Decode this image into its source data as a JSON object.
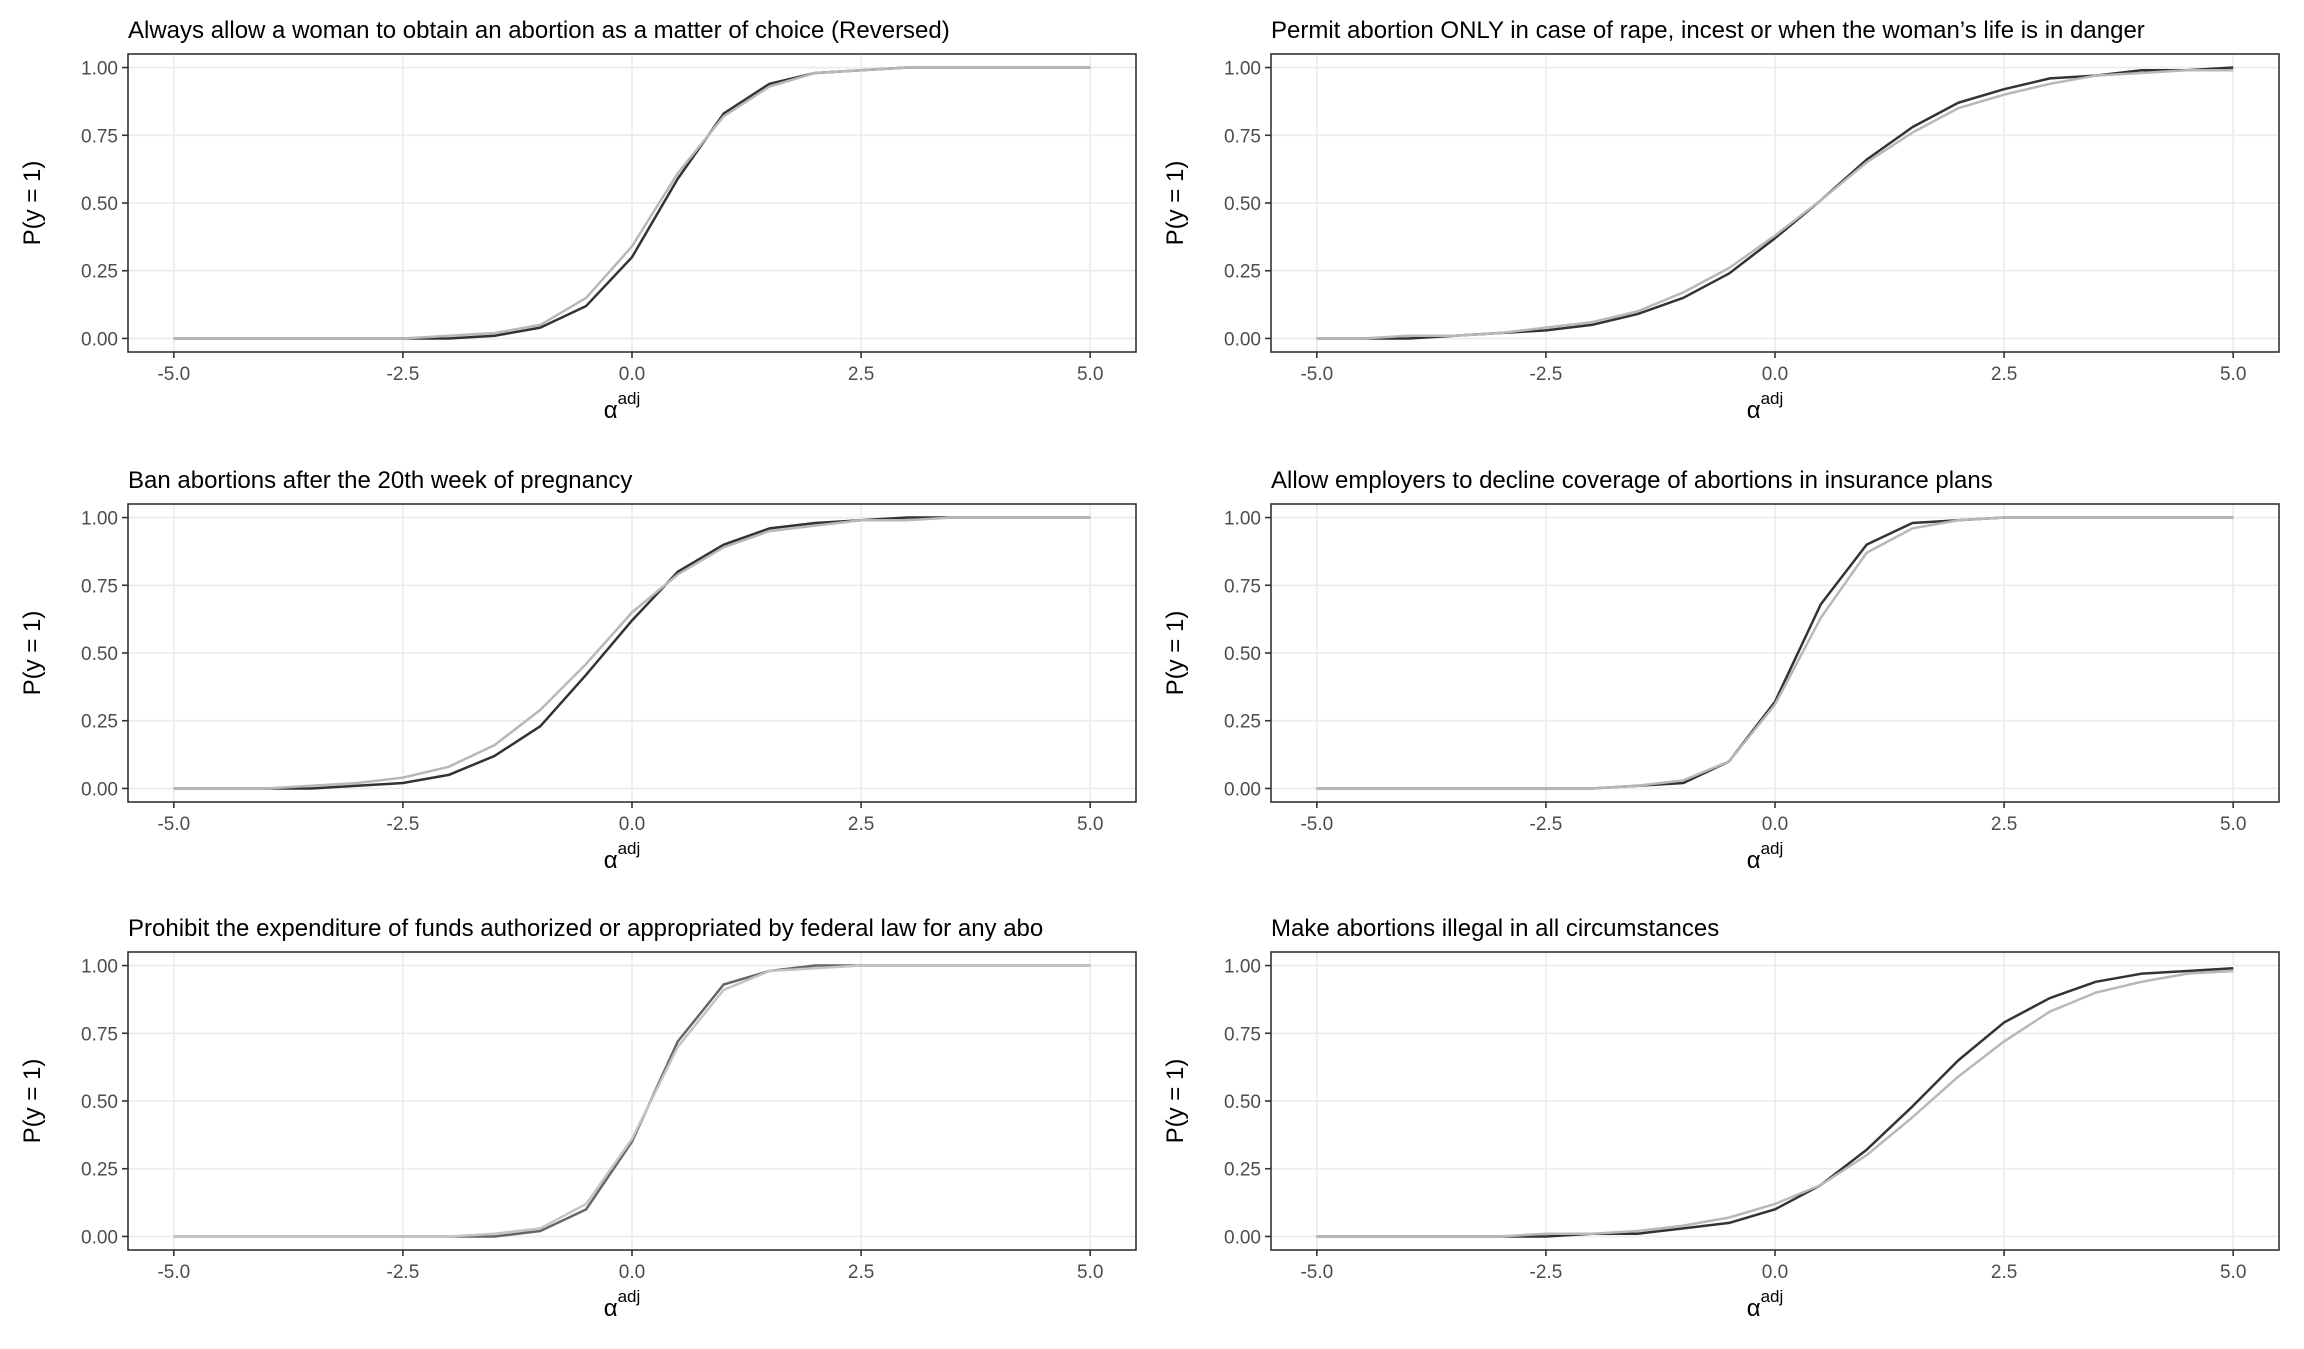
{
  "chart_data": [
    {
      "type": "line",
      "title": "Always allow a woman to obtain an abortion as a matter of choice (Reversed)",
      "x_label": "α",
      "x_label_superscript": "adj",
      "y_label": "P(y = 1)",
      "x": [
        -5,
        -4.5,
        -4,
        -3.5,
        -3,
        -2.5,
        -2,
        -1.5,
        -1,
        -0.5,
        0,
        0.5,
        1,
        1.5,
        2,
        2.5,
        3,
        3.5,
        4,
        4.5,
        5
      ],
      "series": [
        {
          "color": "#333333",
          "values": [
            0,
            0,
            0,
            0,
            0,
            0,
            0,
            0.01,
            0.04,
            0.12,
            0.3,
            0.59,
            0.83,
            0.94,
            0.98,
            0.99,
            1,
            1,
            1,
            1,
            1
          ]
        },
        {
          "color": "#b8b8b8",
          "values": [
            0,
            0,
            0,
            0,
            0,
            0,
            0.01,
            0.02,
            0.05,
            0.15,
            0.34,
            0.61,
            0.82,
            0.93,
            0.98,
            0.99,
            1,
            1,
            1,
            1,
            1
          ]
        }
      ],
      "xlim": [
        -5.5,
        5.5
      ],
      "ylim": [
        -0.05,
        1.05
      ],
      "xticks": [
        {
          "value": -5,
          "label": "-5.0"
        },
        -2.5,
        {
          "value": 0,
          "label": "0.0"
        },
        2.5,
        {
          "value": 5,
          "label": "5.0"
        }
      ],
      "yticks": [
        {
          "value": 0,
          "label": "0.00"
        },
        {
          "value": 0.25,
          "label": "0.25"
        },
        {
          "value": 0.5,
          "label": "0.50"
        },
        {
          "value": 0.75,
          "label": "0.75"
        },
        {
          "value": 1,
          "label": "1.00"
        }
      ],
      "grid": true
    },
    {
      "type": "line",
      "title": "Permit abortion ONLY in case of rape, incest or when the woman’s life is in danger",
      "x_label": "α",
      "x_label_superscript": "adj",
      "y_label": "P(y = 1)",
      "x": [
        -5,
        -4.5,
        -4,
        -3.5,
        -3,
        -2.5,
        -2,
        -1.5,
        -1,
        -0.5,
        0,
        0.5,
        1,
        1.5,
        2,
        2.5,
        3,
        3.5,
        4,
        4.5,
        5
      ],
      "series": [
        {
          "color": "#333333",
          "values": [
            0,
            0,
            0,
            0.01,
            0.02,
            0.03,
            0.05,
            0.09,
            0.15,
            0.24,
            0.37,
            0.51,
            0.66,
            0.78,
            0.87,
            0.92,
            0.96,
            0.97,
            0.99,
            0.99,
            1
          ]
        },
        {
          "color": "#b8b8b8",
          "values": [
            0,
            0,
            0.01,
            0.01,
            0.02,
            0.04,
            0.06,
            0.1,
            0.17,
            0.26,
            0.38,
            0.51,
            0.65,
            0.76,
            0.85,
            0.9,
            0.94,
            0.97,
            0.98,
            0.99,
            0.99
          ]
        }
      ],
      "xlim": [
        -5.5,
        5.5
      ],
      "ylim": [
        -0.05,
        1.05
      ],
      "xticks": [
        {
          "value": -5,
          "label": "-5.0"
        },
        -2.5,
        {
          "value": 0,
          "label": "0.0"
        },
        2.5,
        {
          "value": 5,
          "label": "5.0"
        }
      ],
      "yticks": [
        {
          "value": 0,
          "label": "0.00"
        },
        {
          "value": 0.25,
          "label": "0.25"
        },
        {
          "value": 0.5,
          "label": "0.50"
        },
        {
          "value": 0.75,
          "label": "0.75"
        },
        {
          "value": 1,
          "label": "1.00"
        }
      ],
      "grid": true
    },
    {
      "type": "line",
      "title": "Ban abortions after the 20th week of pregnancy",
      "x_label": "α",
      "x_label_superscript": "adj",
      "y_label": "P(y = 1)",
      "x": [
        -5,
        -4.5,
        -4,
        -3.5,
        -3,
        -2.5,
        -2,
        -1.5,
        -1,
        -0.5,
        0,
        0.5,
        1,
        1.5,
        2,
        2.5,
        3,
        3.5,
        4,
        4.5,
        5
      ],
      "series": [
        {
          "color": "#333333",
          "values": [
            0,
            0,
            0,
            0,
            0.01,
            0.02,
            0.05,
            0.12,
            0.23,
            0.42,
            0.62,
            0.8,
            0.9,
            0.96,
            0.98,
            0.99,
            1,
            1,
            1,
            1,
            1
          ]
        },
        {
          "color": "#b8b8b8",
          "values": [
            0,
            0,
            0,
            0.01,
            0.02,
            0.04,
            0.08,
            0.16,
            0.29,
            0.46,
            0.65,
            0.79,
            0.89,
            0.95,
            0.97,
            0.99,
            0.99,
            1,
            1,
            1,
            1
          ]
        }
      ],
      "xlim": [
        -5.5,
        5.5
      ],
      "ylim": [
        -0.05,
        1.05
      ],
      "xticks": [
        {
          "value": -5,
          "label": "-5.0"
        },
        -2.5,
        {
          "value": 0,
          "label": "0.0"
        },
        2.5,
        {
          "value": 5,
          "label": "5.0"
        }
      ],
      "yticks": [
        {
          "value": 0,
          "label": "0.00"
        },
        {
          "value": 0.25,
          "label": "0.25"
        },
        {
          "value": 0.5,
          "label": "0.50"
        },
        {
          "value": 0.75,
          "label": "0.75"
        },
        {
          "value": 1,
          "label": "1.00"
        }
      ],
      "grid": true
    },
    {
      "type": "line",
      "title": "Allow employers to decline coverage of abortions in insurance plans",
      "x_label": "α",
      "x_label_superscript": "adj",
      "y_label": "P(y = 1)",
      "x": [
        -5,
        -4.5,
        -4,
        -3.5,
        -3,
        -2.5,
        -2,
        -1.5,
        -1,
        -0.5,
        0,
        0.5,
        1,
        1.5,
        2,
        2.5,
        3,
        3.5,
        4,
        4.5,
        5
      ],
      "series": [
        {
          "color": "#333333",
          "values": [
            0,
            0,
            0,
            0,
            0,
            0,
            0,
            0.01,
            0.02,
            0.1,
            0.32,
            0.68,
            0.9,
            0.98,
            0.99,
            1,
            1,
            1,
            1,
            1,
            1
          ]
        },
        {
          "color": "#b8b8b8",
          "values": [
            0,
            0,
            0,
            0,
            0,
            0,
            0,
            0.01,
            0.03,
            0.1,
            0.31,
            0.63,
            0.87,
            0.96,
            0.99,
            1,
            1,
            1,
            1,
            1,
            1
          ]
        }
      ],
      "xlim": [
        -5.5,
        5.5
      ],
      "ylim": [
        -0.05,
        1.05
      ],
      "xticks": [
        {
          "value": -5,
          "label": "-5.0"
        },
        -2.5,
        {
          "value": 0,
          "label": "0.0"
        },
        2.5,
        {
          "value": 5,
          "label": "5.0"
        }
      ],
      "yticks": [
        {
          "value": 0,
          "label": "0.00"
        },
        {
          "value": 0.25,
          "label": "0.25"
        },
        {
          "value": 0.5,
          "label": "0.50"
        },
        {
          "value": 0.75,
          "label": "0.75"
        },
        {
          "value": 1,
          "label": "1.00"
        }
      ],
      "grid": true
    },
    {
      "type": "line",
      "title": "Prohibit the expenditure of funds authorized or appropriated by federal law for any abo",
      "x_label": "α",
      "x_label_superscript": "adj",
      "y_label": "P(y = 1)",
      "x": [
        -5,
        -4.5,
        -4,
        -3.5,
        -3,
        -2.5,
        -2,
        -1.5,
        -1,
        -0.5,
        0,
        0.5,
        1,
        1.5,
        2,
        2.5,
        3,
        3.5,
        4,
        4.5,
        5
      ],
      "series": [
        {
          "color": "#666666",
          "values": [
            0,
            0,
            0,
            0,
            0,
            0,
            0,
            0,
            0.02,
            0.1,
            0.35,
            0.72,
            0.93,
            0.98,
            1,
            1,
            1,
            1,
            1,
            1,
            1
          ]
        },
        {
          "color": "#c4c4c4",
          "values": [
            0,
            0,
            0,
            0,
            0,
            0,
            0,
            0.01,
            0.03,
            0.12,
            0.36,
            0.7,
            0.91,
            0.98,
            0.99,
            1,
            1,
            1,
            1,
            1,
            1
          ]
        }
      ],
      "xlim": [
        -5.5,
        5.5
      ],
      "ylim": [
        -0.05,
        1.05
      ],
      "xticks": [
        {
          "value": -5,
          "label": "-5.0"
        },
        -2.5,
        {
          "value": 0,
          "label": "0.0"
        },
        2.5,
        {
          "value": 5,
          "label": "5.0"
        }
      ],
      "yticks": [
        {
          "value": 0,
          "label": "0.00"
        },
        {
          "value": 0.25,
          "label": "0.25"
        },
        {
          "value": 0.5,
          "label": "0.50"
        },
        {
          "value": 0.75,
          "label": "0.75"
        },
        {
          "value": 1,
          "label": "1.00"
        }
      ],
      "grid": true
    },
    {
      "type": "line",
      "title": "Make abortions illegal in all circumstances",
      "x_label": "α",
      "x_label_superscript": "adj",
      "y_label": "P(y = 1)",
      "x": [
        -5,
        -4.5,
        -4,
        -3.5,
        -3,
        -2.5,
        -2,
        -1.5,
        -1,
        -0.5,
        0,
        0.5,
        1,
        1.5,
        2,
        2.5,
        3,
        3.5,
        4,
        4.5,
        5
      ],
      "series": [
        {
          "color": "#333333",
          "values": [
            0,
            0,
            0,
            0,
            0,
            0,
            0.01,
            0.01,
            0.03,
            0.05,
            0.1,
            0.19,
            0.32,
            0.48,
            0.65,
            0.79,
            0.88,
            0.94,
            0.97,
            0.98,
            0.99
          ]
        },
        {
          "color": "#b8b8b8",
          "values": [
            0,
            0,
            0,
            0,
            0,
            0.01,
            0.01,
            0.02,
            0.04,
            0.07,
            0.12,
            0.19,
            0.3,
            0.44,
            0.59,
            0.72,
            0.83,
            0.9,
            0.94,
            0.97,
            0.98
          ]
        }
      ],
      "xlim": [
        -5.5,
        5.5
      ],
      "ylim": [
        -0.05,
        1.05
      ],
      "xticks": [
        {
          "value": -5,
          "label": "-5.0"
        },
        -2.5,
        {
          "value": 0,
          "label": "0.0"
        },
        2.5,
        {
          "value": 5,
          "label": "5.0"
        }
      ],
      "yticks": [
        {
          "value": 0,
          "label": "0.00"
        },
        {
          "value": 0.25,
          "label": "0.25"
        },
        {
          "value": 0.5,
          "label": "0.50"
        },
        {
          "value": 0.75,
          "label": "0.75"
        },
        {
          "value": 1,
          "label": "1.00"
        }
      ],
      "grid": true
    }
  ]
}
